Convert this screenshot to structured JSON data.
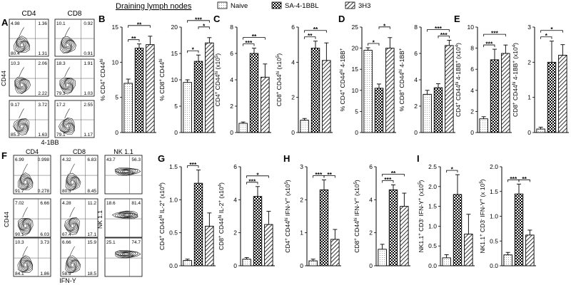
{
  "title": "Draining lymph nodes",
  "legend": [
    {
      "label": "Naive",
      "pattern": "dots"
    },
    {
      "label": "SA-4-1BBL",
      "pattern": "check"
    },
    {
      "label": "3H3",
      "pattern": "hatch"
    }
  ],
  "flow_A": {
    "letter": "A",
    "col_headers": [
      "CD4",
      "CD8"
    ],
    "ylabel": "CD44",
    "xlabel": "4-1BB",
    "rows": [
      [
        [
          "4.98",
          "1.36",
          "80.4",
          "1.31"
        ],
        [
          "10.1",
          "0.92",
          "",
          "0.91"
        ]
      ],
      [
        [
          "10.3",
          "2.06",
          "",
          "2.22"
        ],
        [
          "18.3",
          "1.91",
          "79.3",
          "1.03"
        ]
      ],
      [
        [
          "9.17",
          "3.72",
          "85.3",
          "1.63"
        ],
        [
          "17.2",
          "2.55",
          "79.1",
          "1.17"
        ]
      ]
    ]
  },
  "flow_F": {
    "letter": "F",
    "col_headers": [
      "CD4",
      "CD8",
      "NK 1.1"
    ],
    "ylabel": "CD44",
    "ylabel_nk": "NK 1.1",
    "xlabel": "IFN-Y",
    "rows": [
      [
        [
          "6.99",
          "0.998",
          "91.7",
          "0.278"
        ],
        [
          "4.32",
          "6.83",
          "80.3",
          "8.45"
        ],
        [
          "43.7",
          "56.3",
          "",
          ""
        ]
      ],
      [
        [
          "7.02",
          "6.66",
          "90.1",
          "6.03"
        ],
        [
          "4.28",
          "11.2",
          "67.4",
          "17.1"
        ],
        [
          "18.6",
          "81.4",
          "",
          ""
        ]
      ],
      [
        [
          "10.3",
          "3.73",
          "84.1",
          "1.86"
        ],
        [
          "6.66",
          "15.9",
          "58.9",
          "18.5"
        ],
        [
          "25.1",
          "74.7",
          "",
          ""
        ]
      ]
    ]
  },
  "colors": {
    "bar_edge": "#000000",
    "background": "#ffffff"
  },
  "chart_data": [
    {
      "id": "B1",
      "type": "bar",
      "panel_letter": "B",
      "ylabel": "% CD4+ CD44hi",
      "ylim": [
        0,
        15
      ],
      "ticks": [
        "0",
        "5",
        "10",
        "15"
      ],
      "values": [
        7.0,
        12.0,
        12.5
      ],
      "errors": [
        0.6,
        0.6,
        1.2
      ],
      "sig": [
        {
          "text": "**",
          "from": 0,
          "to": 1,
          "level": 1
        },
        {
          "text": "**",
          "from": 0,
          "to": 2,
          "level": 2
        }
      ]
    },
    {
      "id": "B2",
      "type": "bar",
      "panel_letter": "",
      "ylabel": "% CD8+ CD44hi",
      "ylim": [
        0,
        20
      ],
      "ticks": [
        "0",
        "5",
        "10",
        "15",
        "20"
      ],
      "values": [
        9.5,
        13.5,
        17.0
      ],
      "errors": [
        0.5,
        1.2,
        1.0
      ],
      "sig": [
        {
          "text": "*",
          "from": 0,
          "to": 1,
          "level": 1
        },
        {
          "text": "*",
          "from": 1,
          "to": 2,
          "level": 2
        },
        {
          "text": "***",
          "from": 0,
          "to": 2,
          "level": 3
        }
      ]
    },
    {
      "id": "C1",
      "type": "bar",
      "panel_letter": "C",
      "ylabel": "CD4+ CD44hi (x10^5)",
      "ylim": [
        0,
        8
      ],
      "ticks": [
        "0",
        "2",
        "4",
        "6",
        "8"
      ],
      "values": [
        0.7,
        6.0,
        4.2
      ],
      "errors": [
        0.1,
        0.4,
        1.0
      ],
      "sig": [
        {
          "text": "***",
          "from": 0,
          "to": 1,
          "level": 1
        },
        {
          "text": "**",
          "from": 0,
          "to": 2,
          "level": 2
        }
      ]
    },
    {
      "id": "C2",
      "type": "bar",
      "panel_letter": "",
      "ylabel": "CD8+ CD44hi (x10^5)",
      "ylim": [
        0,
        6
      ],
      "ticks": [
        "0",
        "2",
        "4",
        "6"
      ],
      "values": [
        0.7,
        4.8,
        4.1
      ],
      "errors": [
        0.1,
        0.4,
        1.0
      ],
      "sig": [
        {
          "text": "**",
          "from": 0,
          "to": 1,
          "level": 1
        },
        {
          "text": "**",
          "from": 0,
          "to": 2,
          "level": 2
        }
      ]
    },
    {
      "id": "D1",
      "type": "bar",
      "panel_letter": "D",
      "ylabel": "% CD4+ CD44hi 4-1BB+",
      "ylim": [
        0,
        25
      ],
      "ticks": [
        "0",
        "5",
        "10",
        "15",
        "20",
        "25"
      ],
      "values": [
        19.5,
        10.5,
        20.0
      ],
      "errors": [
        0.6,
        1.0,
        2.5
      ],
      "sig": [
        {
          "text": "*",
          "from": 0,
          "to": 1,
          "level": 1
        },
        {
          "text": "*",
          "from": 1,
          "to": 2,
          "level": 2
        }
      ]
    },
    {
      "id": "D2",
      "type": "bar",
      "panel_letter": "",
      "ylabel": "% CD8+ CD44hi 4-1BB+",
      "ylim": [
        0,
        8
      ],
      "ticks": [
        "0",
        "2",
        "4",
        "6",
        "8"
      ],
      "values": [
        2.9,
        3.4,
        6.6
      ],
      "errors": [
        0.3,
        0.3,
        0.4
      ],
      "sig": [
        {
          "text": "***",
          "from": 1,
          "to": 2,
          "level": 1
        },
        {
          "text": "***",
          "from": 0,
          "to": 2,
          "level": 2
        }
      ]
    },
    {
      "id": "E1",
      "type": "bar",
      "panel_letter": "E",
      "ylabel": "CD4+ CD44hi 4-1BB+ (x10^4)",
      "ylim": [
        0,
        10
      ],
      "ticks": [
        "0",
        "2",
        "4",
        "6",
        "8",
        "10"
      ],
      "values": [
        1.3,
        6.9,
        7.5
      ],
      "errors": [
        0.2,
        1.0,
        0.8
      ],
      "sig": [
        {
          "text": "***",
          "from": 0,
          "to": 1,
          "level": 1
        },
        {
          "text": "***",
          "from": 0,
          "to": 2,
          "level": 2
        }
      ]
    },
    {
      "id": "E2",
      "type": "bar",
      "panel_letter": "",
      "ylabel": "CD8+ CD44hi 4-1BB+ (x10^4)",
      "ylim": [
        0,
        3
      ],
      "ticks": [
        "0",
        "1",
        "2",
        "3"
      ],
      "values": [
        0.1,
        2.0,
        2.2
      ],
      "errors": [
        0.05,
        0.6,
        0.3
      ],
      "sig": [
        {
          "text": "*",
          "from": 0,
          "to": 1,
          "level": 1
        },
        {
          "text": "*",
          "from": 0,
          "to": 2,
          "level": 2
        }
      ]
    },
    {
      "id": "G1",
      "type": "bar",
      "panel_letter": "G",
      "ylabel": "CD4+ CD44hi IL-2+ (x10^4)",
      "ylim": [
        0,
        1.5
      ],
      "ticks": [
        "0.0",
        "0.5",
        "1.0",
        "1.5"
      ],
      "values": [
        0.08,
        1.25,
        0.6
      ],
      "errors": [
        0.02,
        0.2,
        0.2
      ],
      "sig": [
        {
          "text": "***",
          "from": 0,
          "to": 1,
          "level": 1
        }
      ]
    },
    {
      "id": "G2",
      "type": "bar",
      "panel_letter": "",
      "ylabel": "CD8+ CD44hi IL-2+ (x10^4)",
      "ylim": [
        0,
        6
      ],
      "ticks": [
        "0",
        "2",
        "4",
        "6"
      ],
      "values": [
        0.4,
        4.2,
        2.5
      ],
      "errors": [
        0.1,
        0.6,
        0.8
      ],
      "sig": [
        {
          "text": "***",
          "from": 0,
          "to": 1,
          "level": 1
        },
        {
          "text": "*",
          "from": 0,
          "to": 2,
          "level": 2
        }
      ]
    },
    {
      "id": "H1",
      "type": "bar",
      "panel_letter": "H",
      "ylabel": "CD4+ CD44hi IFN-Y+ (x10^5)",
      "ylim": [
        0,
        3
      ],
      "ticks": [
        "0",
        "1",
        "2",
        "3"
      ],
      "values": [
        0.15,
        2.3,
        0.8
      ],
      "errors": [
        0.05,
        0.3,
        0.3
      ],
      "sig": [
        {
          "text": "***",
          "from": 0,
          "to": 1,
          "level": 1
        },
        {
          "text": "**",
          "from": 1,
          "to": 2,
          "level": 1
        }
      ]
    },
    {
      "id": "H2",
      "type": "bar",
      "panel_letter": "",
      "ylabel": "CD8+ CD44hi IFN-Y+ (x10^5)",
      "ylim": [
        0,
        6
      ],
      "ticks": [
        "0",
        "2",
        "4",
        "6"
      ],
      "values": [
        1.0,
        4.6,
        3.6
      ],
      "errors": [
        0.3,
        0.3,
        0.8
      ],
      "sig": [
        {
          "text": "***",
          "from": 0,
          "to": 1,
          "level": 1
        },
        {
          "text": "**",
          "from": 0,
          "to": 2,
          "level": 2
        }
      ]
    },
    {
      "id": "I1",
      "type": "bar",
      "panel_letter": "I",
      "ylabel": "NK1.1+ CD3- IFN-Y+ (x10^5)",
      "ylim": [
        0,
        2.5
      ],
      "ticks": [
        "0.0",
        "0.5",
        "1.0",
        "1.5",
        "2.0",
        "2.5"
      ],
      "values": [
        0.2,
        1.8,
        0.8
      ],
      "errors": [
        0.08,
        0.5,
        0.5
      ],
      "sig": [
        {
          "text": "*",
          "from": 0,
          "to": 1,
          "level": 1
        }
      ]
    },
    {
      "id": "I2",
      "type": "bar",
      "panel_letter": "",
      "ylabel": "NK1.1+ CD3- IFN-Y+ (x 10^5)",
      "ylim": [
        0,
        2.0
      ],
      "ticks": [
        "0.0",
        "0.5",
        "1.0",
        "1.5",
        "2.0"
      ],
      "values": [
        0.22,
        1.45,
        0.62
      ],
      "errors": [
        0.05,
        0.2,
        0.1
      ],
      "sig": [
        {
          "text": "***",
          "from": 0,
          "to": 1,
          "level": 1
        },
        {
          "text": "**",
          "from": 1,
          "to": 2,
          "level": 1
        }
      ]
    }
  ]
}
